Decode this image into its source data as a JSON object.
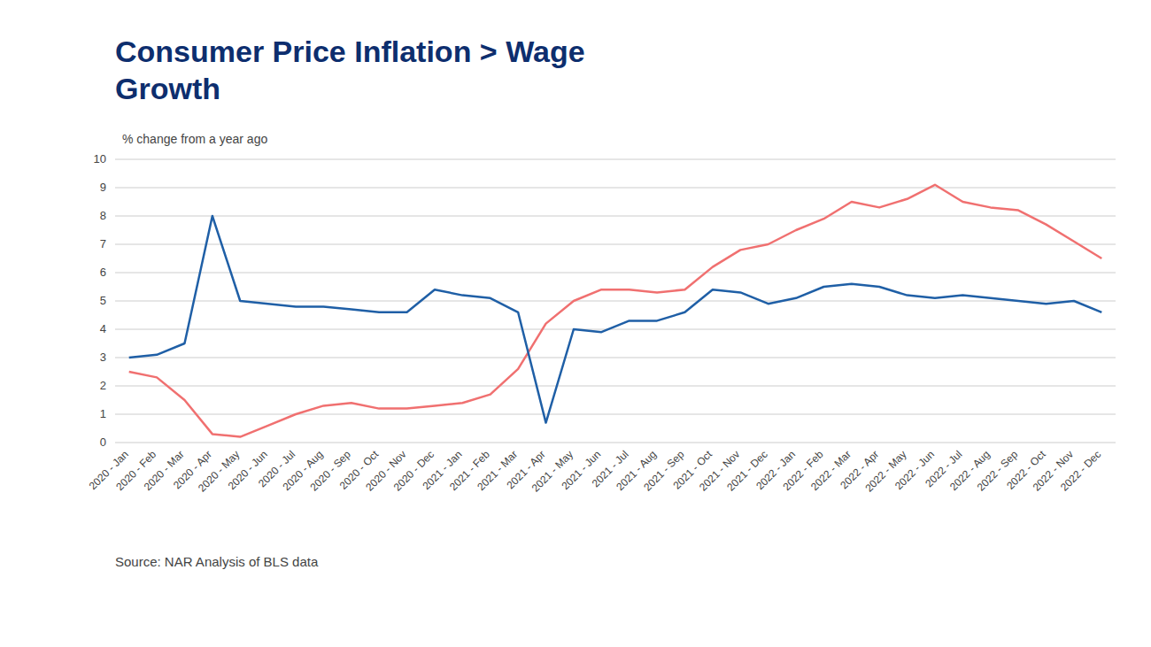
{
  "chart_data": {
    "type": "line",
    "title": "Consumer Price Inflation > Wage\nGrowth",
    "subtitle": "% change from a year ago",
    "source": "Source: NAR Analysis of BLS data",
    "categories": [
      "2020 - Jan",
      "2020 - Feb",
      "2020 - Mar",
      "2020 - Apr",
      "2020 - May",
      "2020 - Jun",
      "2020 - Jul",
      "2020 - Aug",
      "2020 - Sep",
      "2020 - Oct",
      "2020 - Nov",
      "2020 - Dec",
      "2021 - Jan",
      "2021 - Feb",
      "2021 - Mar",
      "2021 - Apr",
      "2021 - May",
      "2021 - Jun",
      "2021 - Jul",
      "2021 - Aug",
      "2021 - Sep",
      "2021 - Oct",
      "2021 - Nov",
      "2021 - Dec",
      "2022 - Jan",
      "2022 - Feb",
      "2022 - Mar",
      "2022 - Apr",
      "2022 - May",
      "2022 - Jun",
      "2022 - Jul",
      "2022 - Aug",
      "2022 - Sep",
      "2022 - Oct",
      "2022 - Nov",
      "2022 - Dec"
    ],
    "series": [
      {
        "color": "#f07070",
        "values": [
          2.5,
          2.3,
          1.5,
          0.3,
          0.2,
          0.6,
          1.0,
          1.3,
          1.4,
          1.2,
          1.2,
          1.3,
          1.4,
          1.7,
          2.6,
          4.2,
          5.0,
          5.4,
          5.4,
          5.3,
          5.4,
          6.2,
          6.8,
          7.0,
          7.5,
          7.9,
          8.5,
          8.3,
          8.6,
          9.1,
          8.5,
          8.3,
          8.2,
          7.7,
          7.1,
          6.5
        ]
      },
      {
        "color": "#1f5fa6",
        "values": [
          3.0,
          3.1,
          3.5,
          8.0,
          5.0,
          4.9,
          4.8,
          4.8,
          4.7,
          4.6,
          4.6,
          5.4,
          5.2,
          5.1,
          4.6,
          0.7,
          4.0,
          3.9,
          4.3,
          4.3,
          4.6,
          5.4,
          5.3,
          4.9,
          5.1,
          5.5,
          5.6,
          5.5,
          5.2,
          5.1,
          5.2,
          5.1,
          5.0,
          4.9,
          5.0,
          4.6
        ]
      }
    ],
    "ylim": [
      0,
      10
    ],
    "yticks": [
      0,
      1,
      2,
      3,
      4,
      5,
      6,
      7,
      8,
      9,
      10
    ],
    "grid": true
  }
}
